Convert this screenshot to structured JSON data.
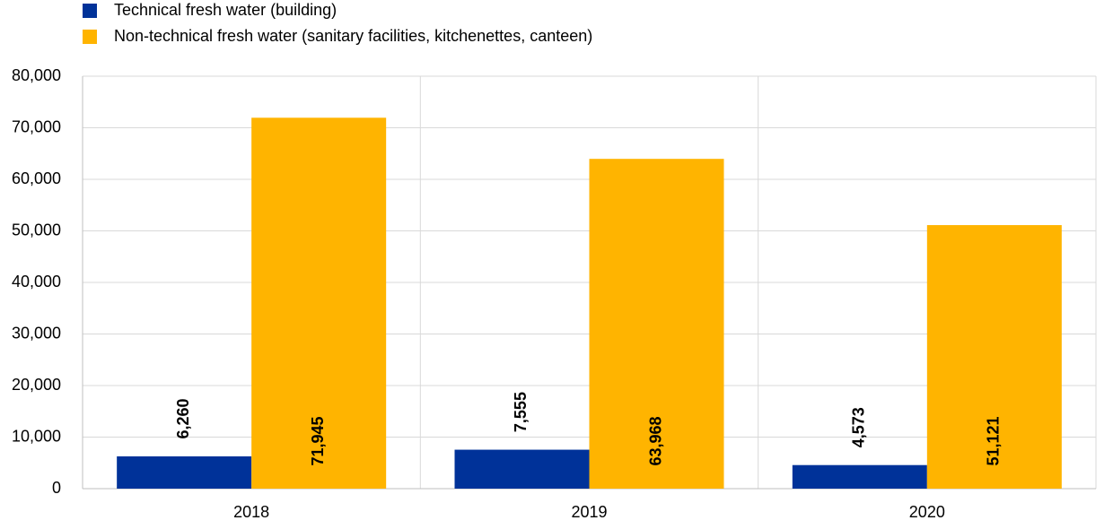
{
  "chart_data": {
    "type": "bar",
    "categories": [
      "2018",
      "2019",
      "2020"
    ],
    "series": [
      {
        "name": "Technical fresh water (building)",
        "color": "#003299",
        "values": [
          6260,
          7555,
          4573
        ],
        "value_labels": [
          "6,260",
          "7,555",
          "4,573"
        ]
      },
      {
        "name": "Non-technical fresh water (sanitary facilities, kitchenettes, canteen)",
        "color": "#ffb400",
        "values": [
          71945,
          63968,
          51121
        ],
        "value_labels": [
          "71,945",
          "63,968",
          "51,121"
        ]
      }
    ],
    "ylim": [
      0,
      80000
    ],
    "yticks": [
      0,
      {
        "value": 10000,
        "label": "10,000"
      },
      {
        "value": 20000,
        "label": "20,000"
      },
      {
        "value": 30000,
        "label": "30,000"
      },
      {
        "value": 40000,
        "label": "40,000"
      },
      {
        "value": 50000,
        "label": "50,000"
      },
      {
        "value": 60000,
        "label": "60,000"
      },
      {
        "value": 70000,
        "label": "70,000"
      },
      {
        "value": 80000,
        "label": "80,000"
      }
    ],
    "grid": true,
    "legend": "top-left"
  }
}
